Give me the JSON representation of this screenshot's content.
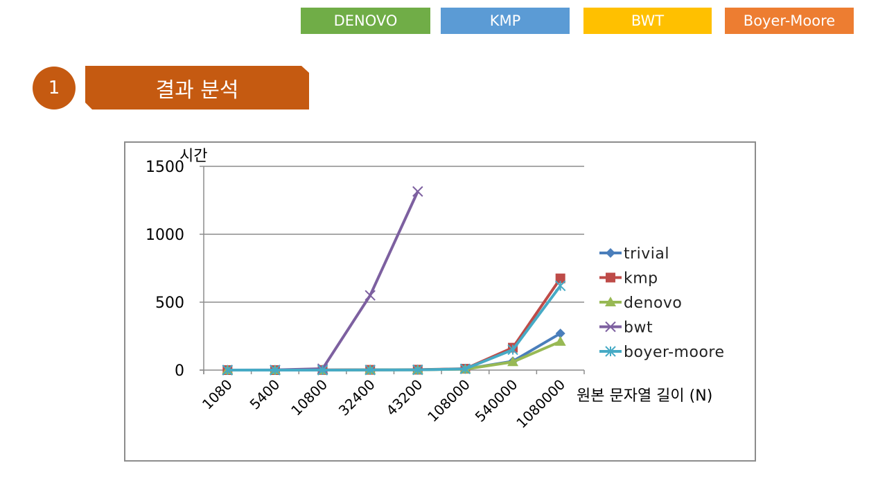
{
  "header": {
    "tabs": [
      {
        "label": "DENOVO",
        "color": "#70ad47"
      },
      {
        "label": "KMP",
        "color": "#5b9bd5"
      },
      {
        "label": "BWT",
        "color": "#ffc000"
      },
      {
        "label": "Boyer-Moore",
        "color": "#ed7d31"
      }
    ]
  },
  "section": {
    "number": "1",
    "title": "결과 분석"
  },
  "chart_data": {
    "type": "line",
    "ylabel": "시간",
    "xlabel": "원본 문자열 길이 (N)",
    "categories": [
      "1080",
      "5400",
      "10800",
      "32400",
      "43200",
      "108000",
      "540000",
      "1080000"
    ],
    "ylim": [
      0,
      1500
    ],
    "yticks": [
      0,
      500,
      1000,
      1500
    ],
    "grid": true,
    "legend_position": "right",
    "series": [
      {
        "name": "trivial",
        "color": "#4a7ebb",
        "marker": "diamond",
        "values": [
          0,
          0,
          0,
          1,
          2,
          8,
          65,
          270
        ]
      },
      {
        "name": "kmp",
        "color": "#be4b48",
        "marker": "square",
        "values": [
          0,
          0,
          1,
          2,
          3,
          10,
          165,
          675
        ]
      },
      {
        "name": "denovo",
        "color": "#98b954",
        "marker": "triangle",
        "values": [
          0,
          0,
          0,
          1,
          2,
          7,
          60,
          210
        ]
      },
      {
        "name": "bwt",
        "color": "#7d60a0",
        "marker": "x",
        "values": [
          0,
          1,
          10,
          550,
          1315,
          null,
          null,
          null
        ]
      },
      {
        "name": "boyer-moore",
        "color": "#46aac5",
        "marker": "star",
        "values": [
          0,
          0,
          0,
          1,
          2,
          9,
          150,
          620
        ]
      }
    ]
  }
}
